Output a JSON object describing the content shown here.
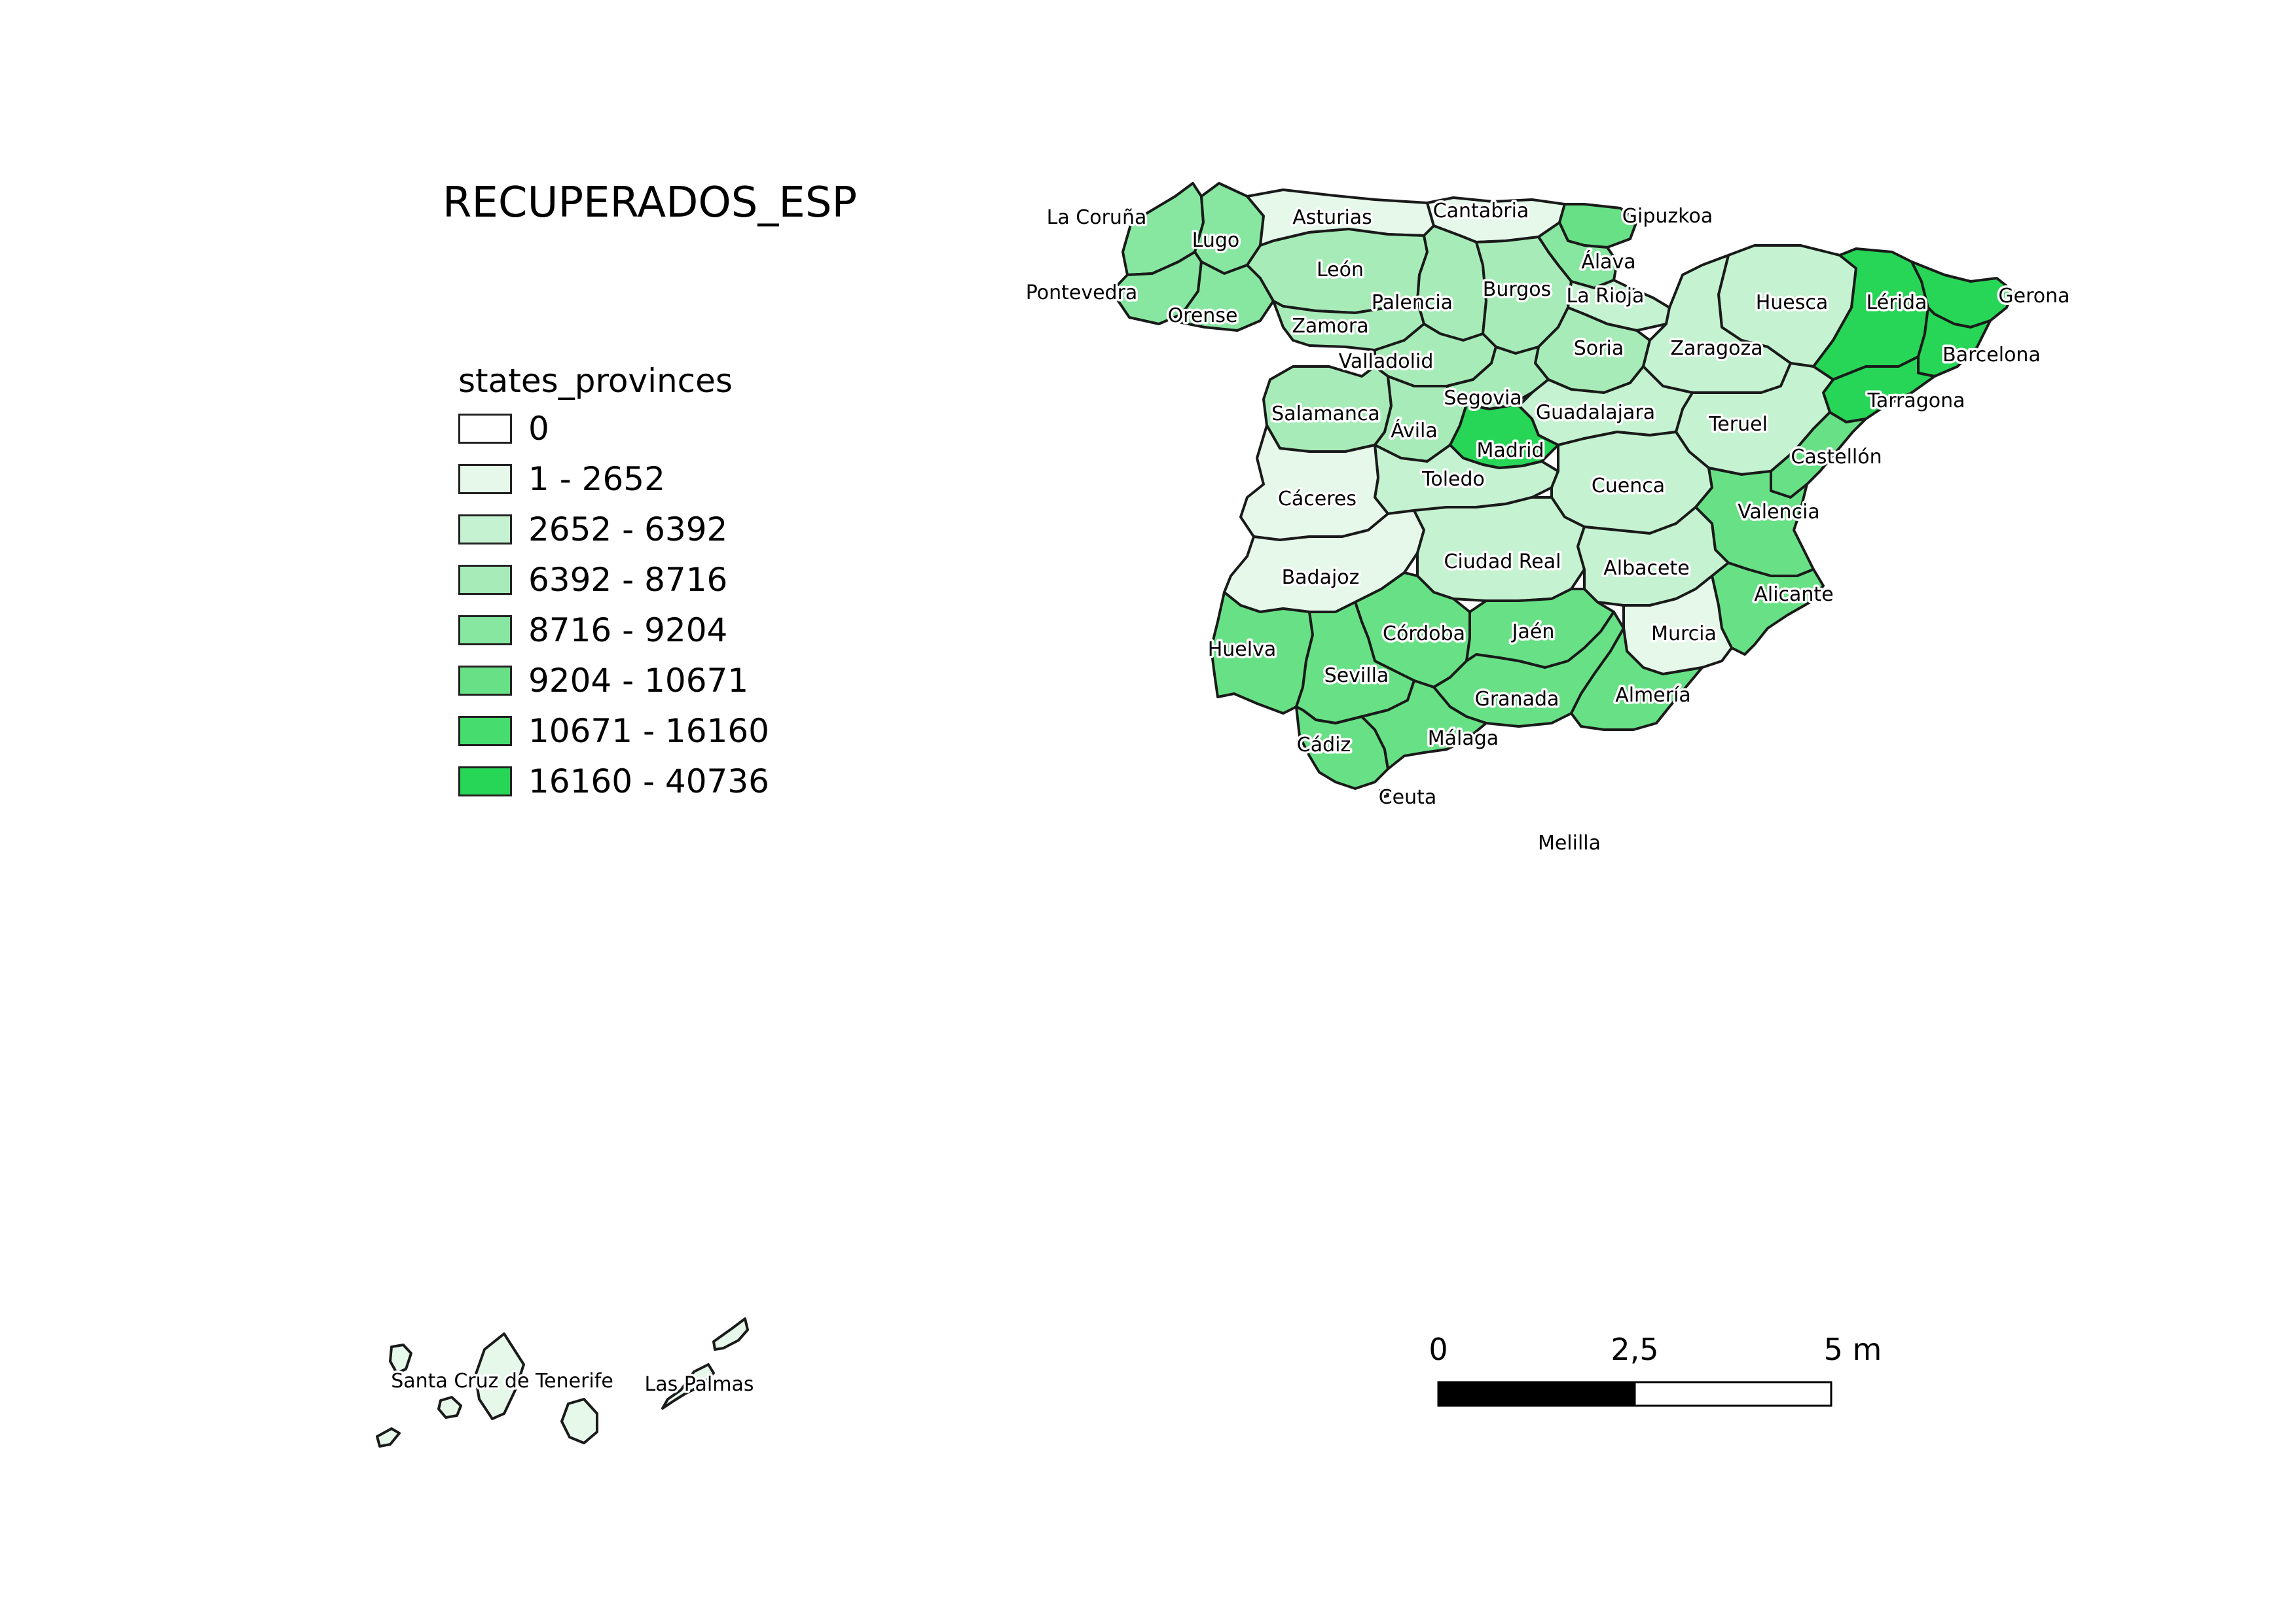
{
  "map": {
    "title": "RECUPERADOS_ESP",
    "legend": {
      "title": "states_provinces",
      "classes": [
        {
          "label": "0",
          "color": "#ffffff"
        },
        {
          "label": "1 - 2652",
          "color": "#e5f8ea"
        },
        {
          "label": "2652 - 6392",
          "color": "#c5f2d0"
        },
        {
          "label": "6392 - 8716",
          "color": "#a7ecb8"
        },
        {
          "label": "8716 - 9204",
          "color": "#87e7a0"
        },
        {
          "label": "9204 - 10671",
          "color": "#68e186"
        },
        {
          "label": "10671 - 16160",
          "color": "#47dc6e"
        },
        {
          "label": "16160 - 40736",
          "color": "#27d656"
        }
      ]
    },
    "provinces": [
      {
        "name": "La Coruña",
        "cls": 4
      },
      {
        "name": "Lugo",
        "cls": 4
      },
      {
        "name": "Asturias",
        "cls": 1
      },
      {
        "name": "Cantabria",
        "cls": 1
      },
      {
        "name": "Gipuzkoa",
        "cls": 5
      },
      {
        "name": "Álava",
        "cls": 4
      },
      {
        "name": "Pontevedra",
        "cls": 4
      },
      {
        "name": "Orense",
        "cls": 4
      },
      {
        "name": "León",
        "cls": 3
      },
      {
        "name": "Palencia",
        "cls": 3
      },
      {
        "name": "Burgos",
        "cls": 3
      },
      {
        "name": "La Rioja",
        "cls": 2
      },
      {
        "name": "Huesca",
        "cls": 2
      },
      {
        "name": "Lérida",
        "cls": 7
      },
      {
        "name": "Gerona",
        "cls": 7
      },
      {
        "name": "Zamora",
        "cls": 3
      },
      {
        "name": "Valladolid",
        "cls": 3
      },
      {
        "name": "Soria",
        "cls": 3
      },
      {
        "name": "Zaragoza",
        "cls": 2
      },
      {
        "name": "Barcelona",
        "cls": 7
      },
      {
        "name": "Segovia",
        "cls": 3
      },
      {
        "name": "Salamanca",
        "cls": 3
      },
      {
        "name": "Guadalajara",
        "cls": 2
      },
      {
        "name": "Tarragona",
        "cls": 7
      },
      {
        "name": "Ávila",
        "cls": 3
      },
      {
        "name": "Teruel",
        "cls": 2
      },
      {
        "name": "Madrid",
        "cls": 7
      },
      {
        "name": "Castellón",
        "cls": 5
      },
      {
        "name": "Toledo",
        "cls": 2
      },
      {
        "name": "Cáceres",
        "cls": 1
      },
      {
        "name": "Cuenca",
        "cls": 2
      },
      {
        "name": "Valencia",
        "cls": 5
      },
      {
        "name": "Badajoz",
        "cls": 1
      },
      {
        "name": "Ciudad Real",
        "cls": 2
      },
      {
        "name": "Albacete",
        "cls": 2
      },
      {
        "name": "Alicante",
        "cls": 5
      },
      {
        "name": "Huelva",
        "cls": 5
      },
      {
        "name": "Córdoba",
        "cls": 5
      },
      {
        "name": "Jaén",
        "cls": 5
      },
      {
        "name": "Murcia",
        "cls": 1
      },
      {
        "name": "Sevilla",
        "cls": 5
      },
      {
        "name": "Granada",
        "cls": 5
      },
      {
        "name": "Almería",
        "cls": 5
      },
      {
        "name": "Cádiz",
        "cls": 5
      },
      {
        "name": "Málaga",
        "cls": 5
      },
      {
        "name": "Ceuta",
        "cls": 0
      },
      {
        "name": "Melilla",
        "cls": 0
      },
      {
        "name": "Santa Cruz de Tenerife",
        "cls": 1
      },
      {
        "name": "Las Palmas",
        "cls": 1
      }
    ],
    "scale_bar": {
      "labels": [
        "0",
        "2,5",
        "5 m"
      ]
    }
  }
}
